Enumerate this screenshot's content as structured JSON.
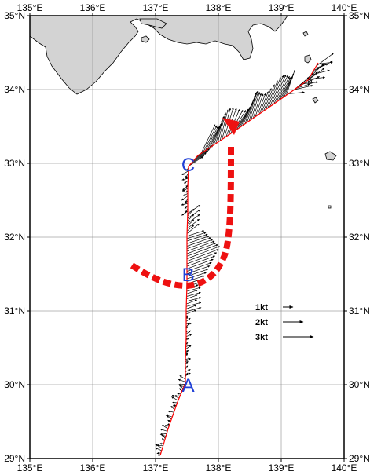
{
  "map": {
    "lon_range": [
      135,
      140
    ],
    "lat_range": [
      29,
      35
    ],
    "land_color": "#d3d3d3",
    "track_color": "#ff0000",
    "arrow_color": "#000000",
    "kuroshio_color": "#ee1111",
    "lon_labels": [
      "135°E",
      "136°E",
      "137°E",
      "138°E",
      "139°E",
      "140°E"
    ],
    "lat_labels": [
      "35°N",
      "34°N",
      "33°N",
      "32°N",
      "31°N",
      "30°N",
      "29°N"
    ]
  },
  "points": [
    {
      "label": "A",
      "lon": 137.52,
      "lat": 30.0
    },
    {
      "label": "B",
      "lon": 137.52,
      "lat": 31.5
    },
    {
      "label": "C",
      "lon": 137.52,
      "lat": 32.99
    }
  ],
  "legend": [
    {
      "label": "1kt",
      "knots": 1
    },
    {
      "label": "2kt",
      "knots": 2
    },
    {
      "label": "3kt",
      "knots": 3
    }
  ]
}
